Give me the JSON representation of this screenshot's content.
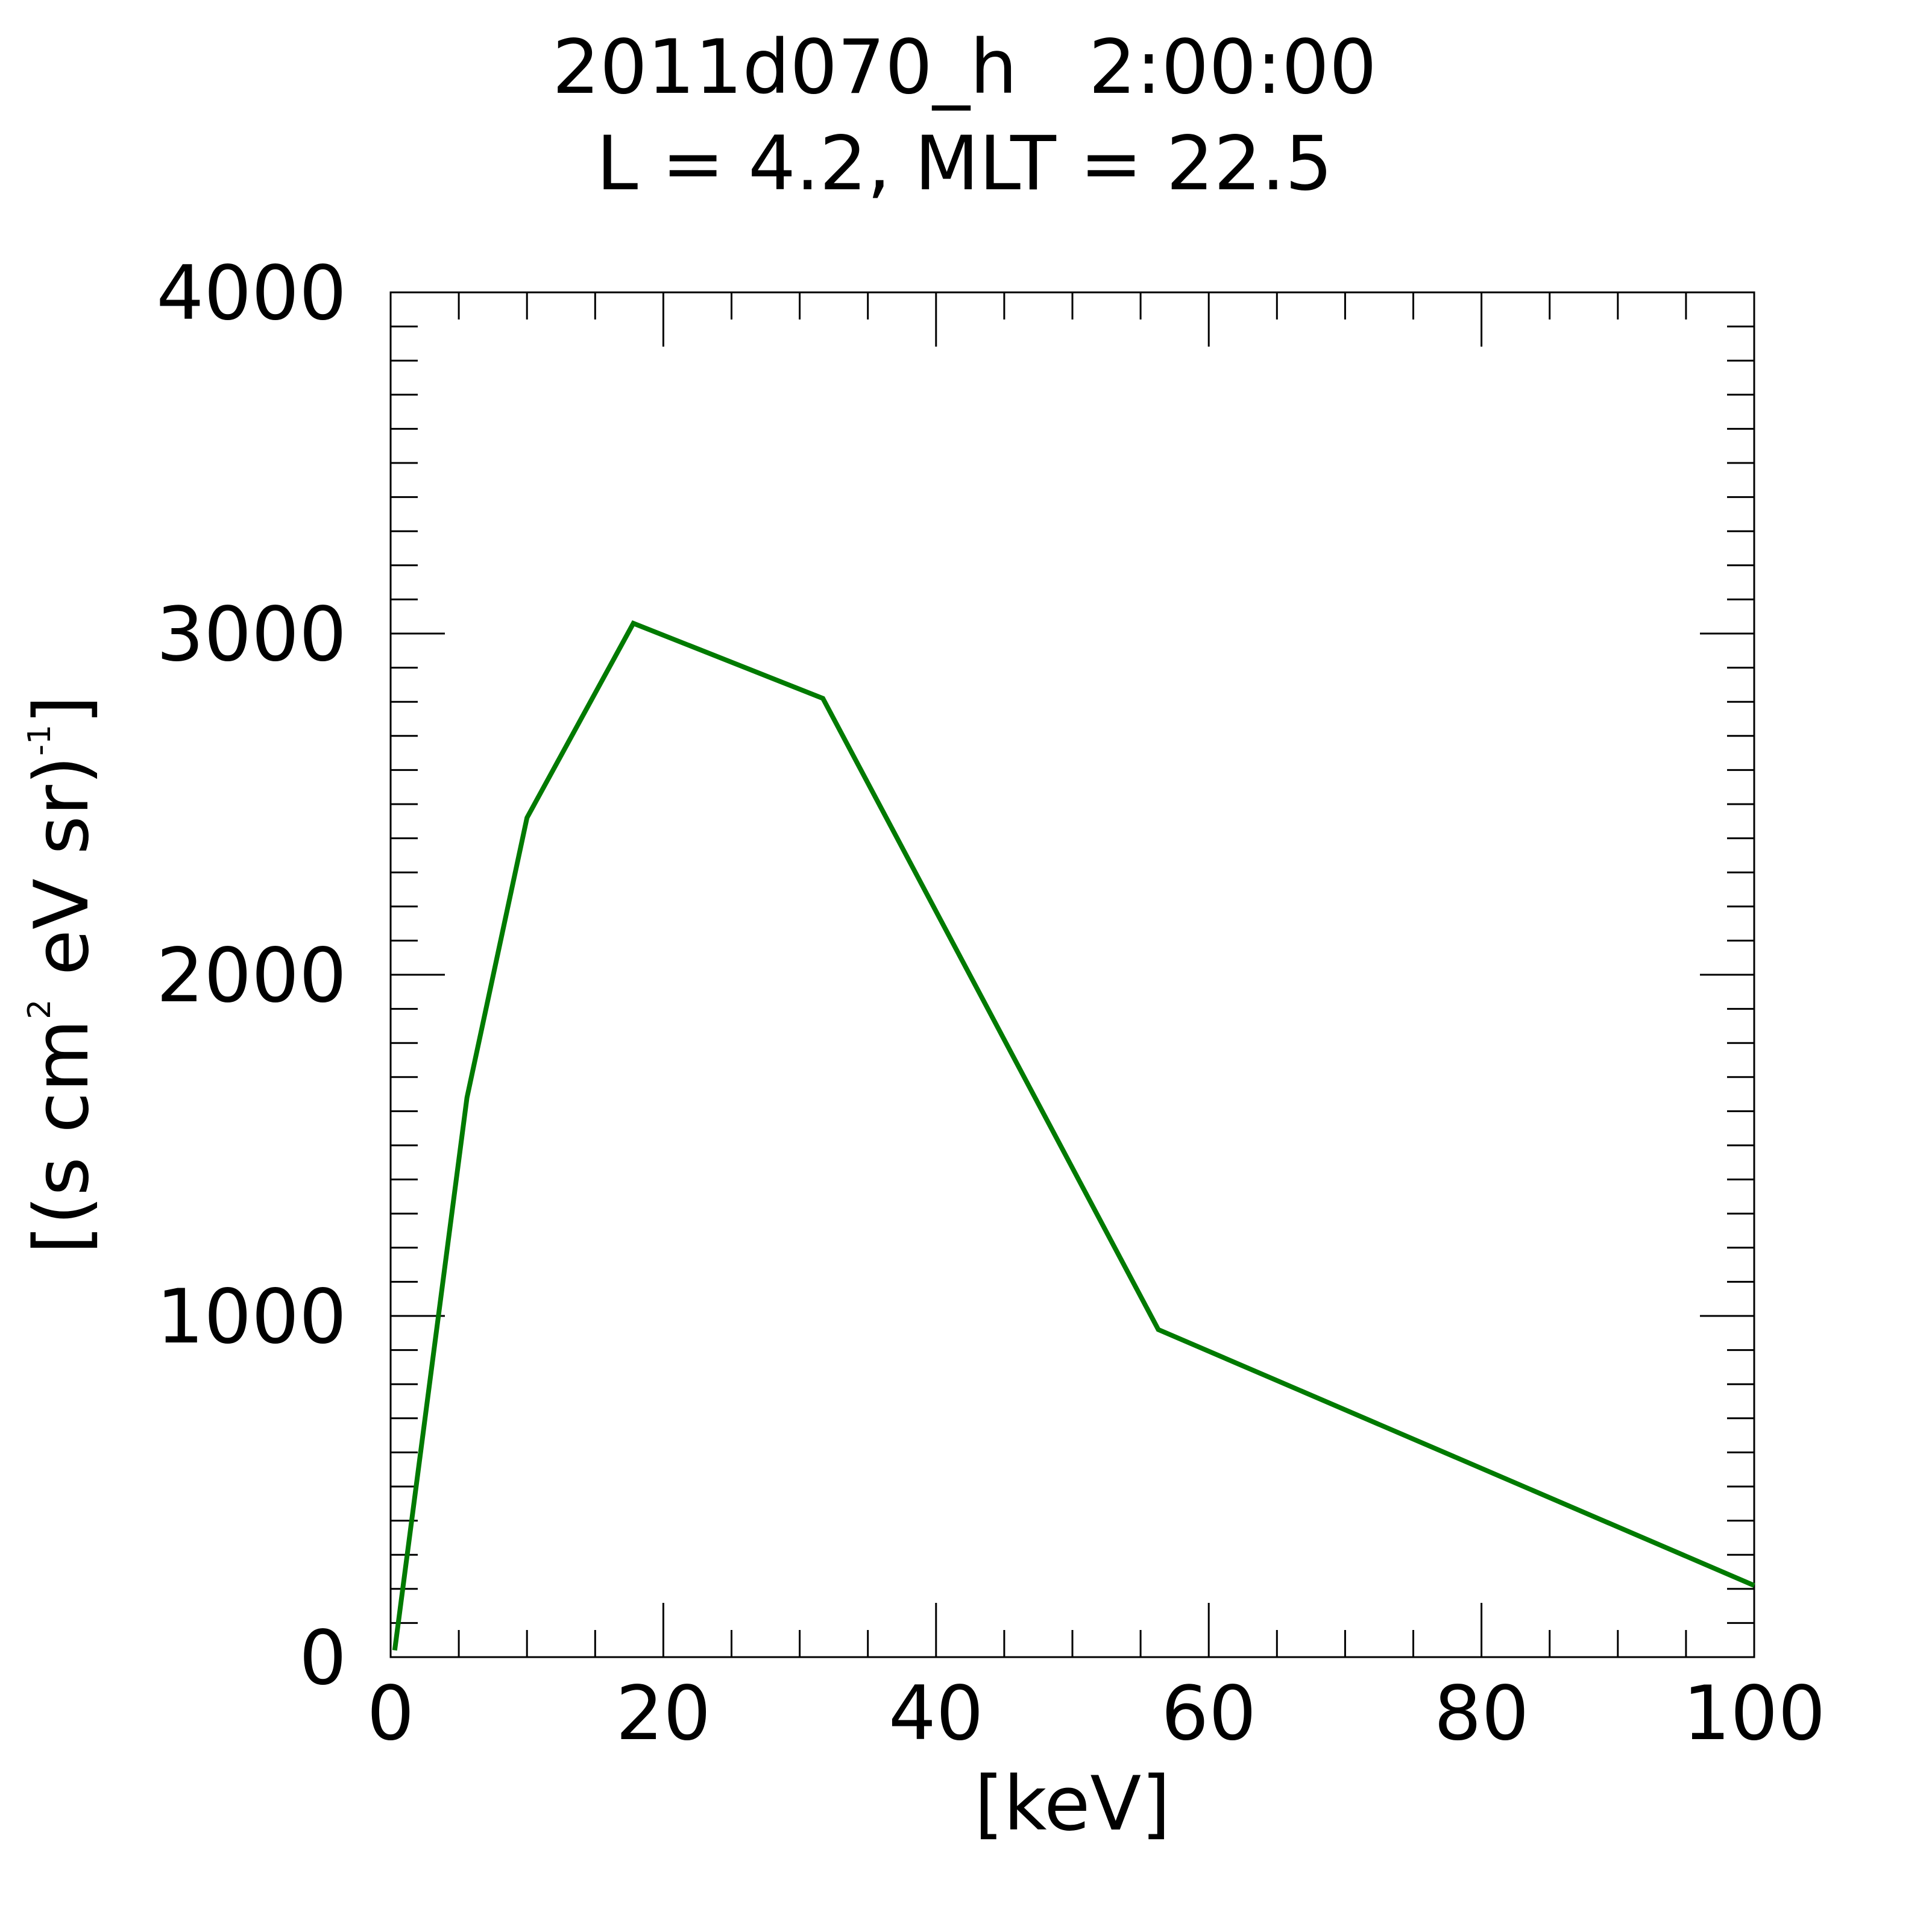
{
  "colors": {
    "series": "#007a00",
    "axes": "#000000",
    "background": "#ffffff"
  },
  "chart_data": {
    "type": "line",
    "title": "2011d070_h   2:00:00",
    "subtitle": "L = 4.2, MLT = 22.5",
    "xlabel": "[keV]",
    "ylabel": {
      "prefix": "[(s cm",
      "sup1": "2",
      "middle": " eV sr)",
      "sup2": "-1",
      "suffix": "]"
    },
    "xlim": [
      0,
      100
    ],
    "ylim": [
      0,
      4000
    ],
    "xticks": [
      "0",
      "20",
      "40",
      "60",
      "80",
      "100"
    ],
    "yticks": [
      "0",
      "1000",
      "2000",
      "3000",
      "4000"
    ],
    "x_minor_step": 5,
    "y_minor_step": 100,
    "grid": false,
    "series": [
      {
        "color": "#007a00",
        "x": [
          0.3,
          5.6,
          10.0,
          17.8,
          31.7,
          56.3,
          100.0
        ],
        "y": [
          20,
          1640,
          2460,
          3030,
          2810,
          960,
          210
        ]
      }
    ]
  }
}
